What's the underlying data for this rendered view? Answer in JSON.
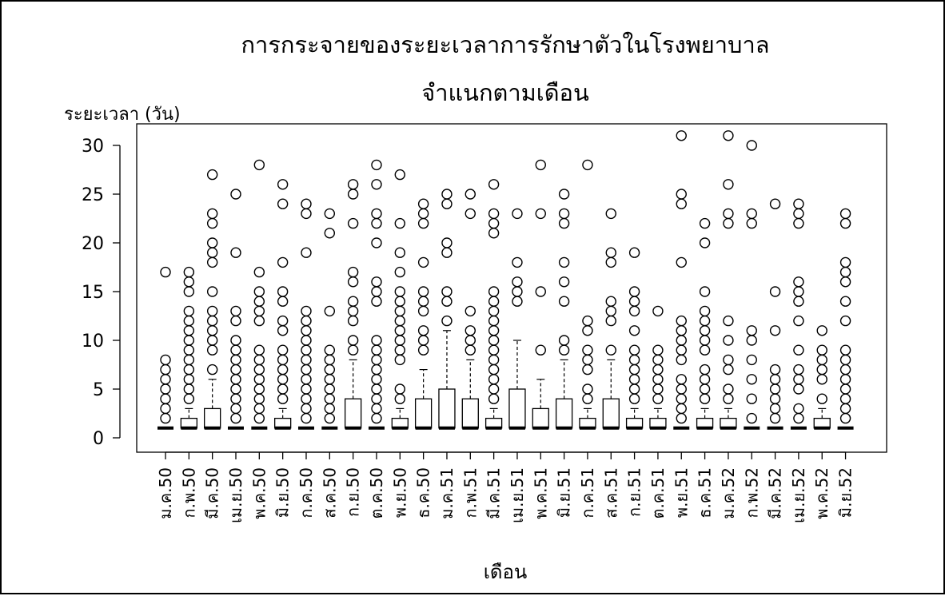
{
  "chart_data": {
    "type": "boxplot",
    "title": "การกระจายของระยะเวลาการรักษาตัวในโรงพยาบาล",
    "subtitle": "จำแนกตามเดือน",
    "xlabel": "เดือน",
    "ylabel": "ระยะเวลา (วัน)",
    "ylim": [
      0,
      32
    ],
    "yticks": [
      0,
      5,
      10,
      15,
      20,
      25,
      30
    ],
    "grid": false,
    "categories": [
      "ม.ค.50",
      "ก.พ.50",
      "มี.ค.50",
      "เม.ย.50",
      "พ.ค.50",
      "มิ.ย.50",
      "ก.ค.50",
      "ส.ค.50",
      "ก.ย.50",
      "ต.ค.50",
      "พ.ย.50",
      "ธ.ค.50",
      "ม.ค.51",
      "ก.พ.51",
      "มี.ค.51",
      "เม.ย.51",
      "พ.ค.51",
      "มิ.ย.51",
      "ก.ค.51",
      "ส.ค.51",
      "ก.ย.51",
      "ต.ค.51",
      "พ.ย.51",
      "ธ.ค.51",
      "ม.ค.52",
      "ก.พ.52",
      "มี.ค.52",
      "เม.ย.52",
      "พ.ค.52",
      "มิ.ย.52"
    ],
    "boxes": [
      {
        "q1": 1,
        "median": 1,
        "q3": 1,
        "whisker_low": 1,
        "whisker_high": 1,
        "outliers": [
          2,
          3,
          4,
          5,
          6,
          7,
          8,
          17
        ]
      },
      {
        "q1": 1,
        "median": 1,
        "q3": 2,
        "whisker_low": 1,
        "whisker_high": 3,
        "outliers": [
          4,
          5,
          6,
          7,
          8,
          9,
          10,
          11,
          12,
          13,
          15,
          16,
          17
        ]
      },
      {
        "q1": 1,
        "median": 1,
        "q3": 3,
        "whisker_low": 1,
        "whisker_high": 6,
        "outliers": [
          7,
          9,
          10,
          11,
          12,
          13,
          15,
          18,
          19,
          20,
          22,
          23,
          27
        ]
      },
      {
        "q1": 1,
        "median": 1,
        "q3": 1,
        "whisker_low": 1,
        "whisker_high": 1,
        "outliers": [
          2,
          3,
          4,
          5,
          6,
          7,
          8,
          9,
          10,
          12,
          13,
          19,
          25
        ]
      },
      {
        "q1": 1,
        "median": 1,
        "q3": 1,
        "whisker_low": 1,
        "whisker_high": 1,
        "outliers": [
          2,
          3,
          4,
          5,
          6,
          7,
          8,
          9,
          12,
          13,
          14,
          15,
          17,
          28
        ]
      },
      {
        "q1": 1,
        "median": 1,
        "q3": 2,
        "whisker_low": 1,
        "whisker_high": 3,
        "outliers": [
          4,
          5,
          6,
          7,
          8,
          9,
          11,
          12,
          14,
          15,
          18,
          24,
          26
        ]
      },
      {
        "q1": 1,
        "median": 1,
        "q3": 1,
        "whisker_low": 1,
        "whisker_high": 1,
        "outliers": [
          2,
          3,
          4,
          5,
          6,
          7,
          8,
          9,
          10,
          11,
          12,
          13,
          19,
          23,
          24
        ]
      },
      {
        "q1": 1,
        "median": 1,
        "q3": 1,
        "whisker_low": 1,
        "whisker_high": 1,
        "outliers": [
          2,
          3,
          4,
          5,
          6,
          7,
          8,
          9,
          13,
          21,
          23
        ]
      },
      {
        "q1": 1,
        "median": 1,
        "q3": 4,
        "whisker_low": 1,
        "whisker_high": 8,
        "outliers": [
          9,
          10,
          12,
          13,
          14,
          16,
          17,
          22,
          25,
          26
        ]
      },
      {
        "q1": 1,
        "median": 1,
        "q3": 1,
        "whisker_low": 1,
        "whisker_high": 1,
        "outliers": [
          2,
          3,
          4,
          5,
          6,
          7,
          8,
          9,
          10,
          14,
          15,
          16,
          20,
          22,
          23,
          26,
          28
        ]
      },
      {
        "q1": 1,
        "median": 1,
        "q3": 2,
        "whisker_low": 1,
        "whisker_high": 3,
        "outliers": [
          4,
          5,
          8,
          9,
          10,
          11,
          12,
          13,
          14,
          15,
          17,
          19,
          22,
          27
        ]
      },
      {
        "q1": 1,
        "median": 1,
        "q3": 4,
        "whisker_low": 1,
        "whisker_high": 7,
        "outliers": [
          9,
          10,
          11,
          13,
          14,
          15,
          18,
          22,
          23,
          24
        ]
      },
      {
        "q1": 1,
        "median": 1,
        "q3": 5,
        "whisker_low": 1,
        "whisker_high": 11,
        "outliers": [
          12,
          14,
          15,
          19,
          20,
          24,
          25
        ]
      },
      {
        "q1": 1,
        "median": 1,
        "q3": 4,
        "whisker_low": 1,
        "whisker_high": 8,
        "outliers": [
          9,
          10,
          11,
          13,
          23,
          25
        ]
      },
      {
        "q1": 1,
        "median": 1,
        "q3": 2,
        "whisker_low": 1,
        "whisker_high": 3,
        "outliers": [
          4,
          5,
          6,
          7,
          8,
          9,
          10,
          11,
          12,
          13,
          14,
          15,
          21,
          22,
          23,
          26
        ]
      },
      {
        "q1": 1,
        "median": 1,
        "q3": 5,
        "whisker_low": 1,
        "whisker_high": 10,
        "outliers": [
          14,
          15,
          16,
          18,
          23
        ]
      },
      {
        "q1": 1,
        "median": 1,
        "q3": 3,
        "whisker_low": 1,
        "whisker_high": 6,
        "outliers": [
          9,
          15,
          23,
          28
        ]
      },
      {
        "q1": 1,
        "median": 1,
        "q3": 4,
        "whisker_low": 1,
        "whisker_high": 8,
        "outliers": [
          9,
          10,
          14,
          16,
          18,
          22,
          23,
          25
        ]
      },
      {
        "q1": 1,
        "median": 1,
        "q3": 2,
        "whisker_low": 1,
        "whisker_high": 3,
        "outliers": [
          4,
          5,
          7,
          8,
          9,
          11,
          12,
          28
        ]
      },
      {
        "q1": 1,
        "median": 1,
        "q3": 4,
        "whisker_low": 1,
        "whisker_high": 8,
        "outliers": [
          9,
          12,
          13,
          14,
          18,
          19,
          23
        ]
      },
      {
        "q1": 1,
        "median": 1,
        "q3": 2,
        "whisker_low": 1,
        "whisker_high": 3,
        "outliers": [
          4,
          5,
          6,
          7,
          8,
          9,
          11,
          13,
          14,
          15,
          19
        ]
      },
      {
        "q1": 1,
        "median": 1,
        "q3": 2,
        "whisker_low": 1,
        "whisker_high": 3,
        "outliers": [
          4,
          5,
          6,
          7,
          8,
          9,
          13
        ]
      },
      {
        "q1": 1,
        "median": 1,
        "q3": 1,
        "whisker_low": 1,
        "whisker_high": 1,
        "outliers": [
          2,
          3,
          4,
          5,
          6,
          8,
          9,
          10,
          11,
          12,
          18,
          24,
          25,
          31
        ]
      },
      {
        "q1": 1,
        "median": 1,
        "q3": 2,
        "whisker_low": 1,
        "whisker_high": 3,
        "outliers": [
          4,
          5,
          6,
          7,
          9,
          10,
          11,
          12,
          13,
          15,
          20,
          22
        ]
      },
      {
        "q1": 1,
        "median": 1,
        "q3": 2,
        "whisker_low": 1,
        "whisker_high": 3,
        "outliers": [
          4,
          5,
          7,
          8,
          10,
          12,
          22,
          23,
          26,
          31
        ]
      },
      {
        "q1": 1,
        "median": 1,
        "q3": 1,
        "whisker_low": 1,
        "whisker_high": 1,
        "outliers": [
          2,
          4,
          6,
          8,
          10,
          11,
          22,
          23,
          30
        ]
      },
      {
        "q1": 1,
        "median": 1,
        "q3": 1,
        "whisker_low": 1,
        "whisker_high": 1,
        "outliers": [
          2,
          3,
          4,
          5,
          6,
          7,
          11,
          15,
          24
        ]
      },
      {
        "q1": 1,
        "median": 1,
        "q3": 1,
        "whisker_low": 1,
        "whisker_high": 1,
        "outliers": [
          2,
          3,
          5,
          6,
          7,
          9,
          12,
          14,
          15,
          16,
          22,
          23,
          24
        ]
      },
      {
        "q1": 1,
        "median": 1,
        "q3": 2,
        "whisker_low": 1,
        "whisker_high": 3,
        "outliers": [
          4,
          6,
          7,
          8,
          9,
          11
        ]
      },
      {
        "q1": 1,
        "median": 1,
        "q3": 1,
        "whisker_low": 1,
        "whisker_high": 1,
        "outliers": [
          2,
          3,
          4,
          5,
          6,
          7,
          8,
          9,
          12,
          14,
          16,
          17,
          18,
          22,
          23
        ]
      }
    ]
  }
}
